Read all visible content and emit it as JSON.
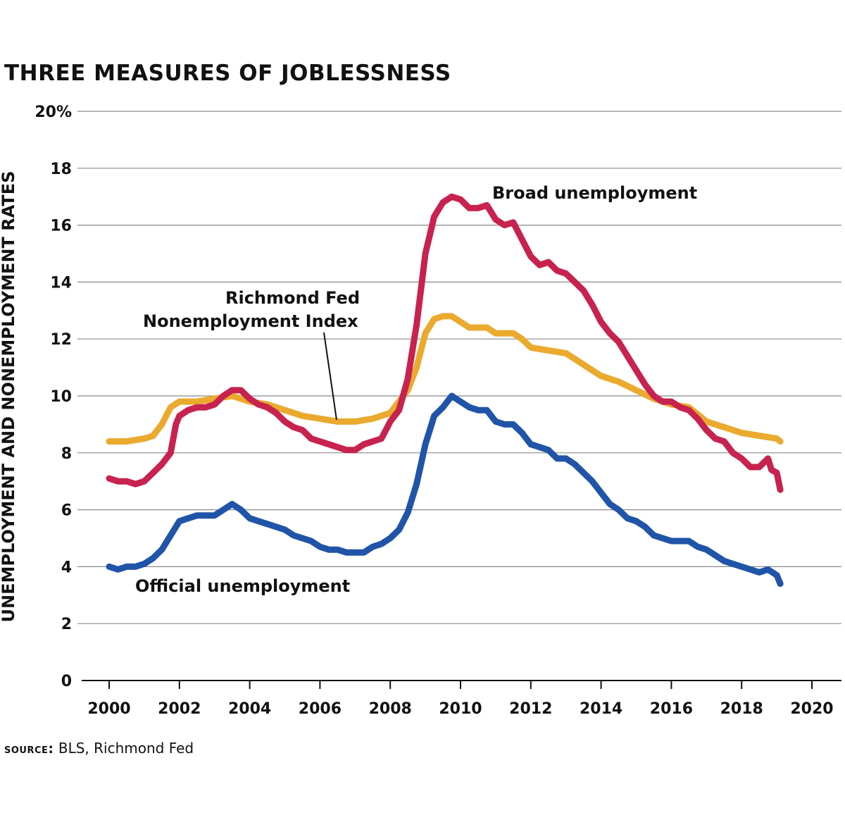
{
  "chart_data": {
    "type": "line",
    "title": "THREE MEASURES OF JOBLESSNESS",
    "xlabel": "",
    "ylabel": "UNEMPLOYMENT AND NONEMPLOYMENT RATES",
    "xlim": [
      2000,
      2020
    ],
    "ylim": [
      0,
      20
    ],
    "x_ticks": [
      "2000",
      "2002",
      "2004",
      "2006",
      "2008",
      "2010",
      "2012",
      "2014",
      "2016",
      "2018",
      "2020"
    ],
    "y_ticks": [
      "0",
      "2",
      "4",
      "6",
      "8",
      "10",
      "12",
      "14",
      "16",
      "18",
      "20%"
    ],
    "grid": "horizontal",
    "annotations": [
      {
        "label": "Broad unemployment",
        "series": "broad"
      },
      {
        "label": "Richmond Fed",
        "series": "nonemployment"
      },
      {
        "label": "Nonemployment Index",
        "series": "nonemployment"
      },
      {
        "label": "Official unemployment",
        "series": "official"
      }
    ],
    "series": [
      {
        "key": "broad",
        "color": "#c8224f",
        "points": [
          [
            2000.0,
            7.1
          ],
          [
            2000.25,
            7.0
          ],
          [
            2000.5,
            7.0
          ],
          [
            2000.75,
            6.9
          ],
          [
            2001.0,
            7.0
          ],
          [
            2001.25,
            7.3
          ],
          [
            2001.5,
            7.6
          ],
          [
            2001.75,
            8.0
          ],
          [
            2001.9,
            9.0
          ],
          [
            2002.0,
            9.3
          ],
          [
            2002.25,
            9.5
          ],
          [
            2002.5,
            9.6
          ],
          [
            2002.75,
            9.6
          ],
          [
            2003.0,
            9.7
          ],
          [
            2003.25,
            10.0
          ],
          [
            2003.5,
            10.2
          ],
          [
            2003.75,
            10.2
          ],
          [
            2004.0,
            9.9
          ],
          [
            2004.25,
            9.7
          ],
          [
            2004.5,
            9.6
          ],
          [
            2004.75,
            9.4
          ],
          [
            2005.0,
            9.1
          ],
          [
            2005.25,
            8.9
          ],
          [
            2005.5,
            8.8
          ],
          [
            2005.75,
            8.5
          ],
          [
            2006.0,
            8.4
          ],
          [
            2006.25,
            8.3
          ],
          [
            2006.5,
            8.2
          ],
          [
            2006.75,
            8.1
          ],
          [
            2007.0,
            8.1
          ],
          [
            2007.25,
            8.3
          ],
          [
            2007.5,
            8.4
          ],
          [
            2007.75,
            8.5
          ],
          [
            2008.0,
            9.1
          ],
          [
            2008.25,
            9.5
          ],
          [
            2008.5,
            10.6
          ],
          [
            2008.75,
            12.5
          ],
          [
            2009.0,
            15.0
          ],
          [
            2009.25,
            16.3
          ],
          [
            2009.5,
            16.8
          ],
          [
            2009.75,
            17.0
          ],
          [
            2010.0,
            16.9
          ],
          [
            2010.25,
            16.6
          ],
          [
            2010.5,
            16.6
          ],
          [
            2010.75,
            16.7
          ],
          [
            2011.0,
            16.2
          ],
          [
            2011.25,
            16.0
          ],
          [
            2011.5,
            16.1
          ],
          [
            2011.75,
            15.5
          ],
          [
            2012.0,
            14.9
          ],
          [
            2012.25,
            14.6
          ],
          [
            2012.5,
            14.7
          ],
          [
            2012.75,
            14.4
          ],
          [
            2013.0,
            14.3
          ],
          [
            2013.25,
            14.0
          ],
          [
            2013.5,
            13.7
          ],
          [
            2013.75,
            13.2
          ],
          [
            2014.0,
            12.6
          ],
          [
            2014.25,
            12.2
          ],
          [
            2014.5,
            11.9
          ],
          [
            2014.75,
            11.4
          ],
          [
            2015.0,
            10.9
          ],
          [
            2015.25,
            10.4
          ],
          [
            2015.5,
            10.0
          ],
          [
            2015.75,
            9.8
          ],
          [
            2016.0,
            9.8
          ],
          [
            2016.25,
            9.6
          ],
          [
            2016.5,
            9.5
          ],
          [
            2016.75,
            9.2
          ],
          [
            2017.0,
            8.8
          ],
          [
            2017.25,
            8.5
          ],
          [
            2017.5,
            8.4
          ],
          [
            2017.75,
            8.0
          ],
          [
            2018.0,
            7.8
          ],
          [
            2018.25,
            7.5
          ],
          [
            2018.5,
            7.5
          ],
          [
            2018.75,
            7.8
          ],
          [
            2018.85,
            7.4
          ],
          [
            2019.0,
            7.3
          ],
          [
            2019.1,
            6.7
          ]
        ]
      },
      {
        "key": "nonemployment",
        "color": "#eaaa2e",
        "points": [
          [
            2000.0,
            8.4
          ],
          [
            2000.5,
            8.4
          ],
          [
            2001.0,
            8.5
          ],
          [
            2001.25,
            8.6
          ],
          [
            2001.5,
            9.0
          ],
          [
            2001.75,
            9.6
          ],
          [
            2002.0,
            9.8
          ],
          [
            2002.5,
            9.8
          ],
          [
            2003.0,
            9.9
          ],
          [
            2003.5,
            10.0
          ],
          [
            2004.0,
            9.8
          ],
          [
            2004.5,
            9.7
          ],
          [
            2005.0,
            9.5
          ],
          [
            2005.5,
            9.3
          ],
          [
            2006.0,
            9.2
          ],
          [
            2006.5,
            9.1
          ],
          [
            2007.0,
            9.1
          ],
          [
            2007.5,
            9.2
          ],
          [
            2008.0,
            9.4
          ],
          [
            2008.5,
            10.2
          ],
          [
            2008.75,
            11.0
          ],
          [
            2009.0,
            12.2
          ],
          [
            2009.25,
            12.7
          ],
          [
            2009.5,
            12.8
          ],
          [
            2009.75,
            12.8
          ],
          [
            2010.0,
            12.6
          ],
          [
            2010.25,
            12.4
          ],
          [
            2010.5,
            12.4
          ],
          [
            2010.75,
            12.4
          ],
          [
            2011.0,
            12.2
          ],
          [
            2011.5,
            12.2
          ],
          [
            2011.75,
            12.0
          ],
          [
            2012.0,
            11.7
          ],
          [
            2012.5,
            11.6
          ],
          [
            2013.0,
            11.5
          ],
          [
            2013.5,
            11.1
          ],
          [
            2014.0,
            10.7
          ],
          [
            2014.5,
            10.5
          ],
          [
            2015.0,
            10.2
          ],
          [
            2015.5,
            9.9
          ],
          [
            2016.0,
            9.7
          ],
          [
            2016.5,
            9.6
          ],
          [
            2017.0,
            9.1
          ],
          [
            2017.5,
            8.9
          ],
          [
            2018.0,
            8.7
          ],
          [
            2018.5,
            8.6
          ],
          [
            2019.0,
            8.5
          ],
          [
            2019.1,
            8.4
          ]
        ]
      },
      {
        "key": "official",
        "color": "#2054a8",
        "points": [
          [
            2000.0,
            4.0
          ],
          [
            2000.25,
            3.9
          ],
          [
            2000.5,
            4.0
          ],
          [
            2000.75,
            4.0
          ],
          [
            2001.0,
            4.1
          ],
          [
            2001.25,
            4.3
          ],
          [
            2001.5,
            4.6
          ],
          [
            2001.75,
            5.1
          ],
          [
            2002.0,
            5.6
          ],
          [
            2002.25,
            5.7
          ],
          [
            2002.5,
            5.8
          ],
          [
            2002.75,
            5.8
          ],
          [
            2003.0,
            5.8
          ],
          [
            2003.25,
            6.0
          ],
          [
            2003.5,
            6.2
          ],
          [
            2003.75,
            6.0
          ],
          [
            2004.0,
            5.7
          ],
          [
            2004.25,
            5.6
          ],
          [
            2004.5,
            5.5
          ],
          [
            2004.75,
            5.4
          ],
          [
            2005.0,
            5.3
          ],
          [
            2005.25,
            5.1
          ],
          [
            2005.5,
            5.0
          ],
          [
            2005.75,
            4.9
          ],
          [
            2006.0,
            4.7
          ],
          [
            2006.25,
            4.6
          ],
          [
            2006.5,
            4.6
          ],
          [
            2006.75,
            4.5
          ],
          [
            2007.0,
            4.5
          ],
          [
            2007.25,
            4.5
          ],
          [
            2007.5,
            4.7
          ],
          [
            2007.75,
            4.8
          ],
          [
            2008.0,
            5.0
          ],
          [
            2008.25,
            5.3
          ],
          [
            2008.5,
            5.9
          ],
          [
            2008.75,
            6.9
          ],
          [
            2009.0,
            8.3
          ],
          [
            2009.25,
            9.3
          ],
          [
            2009.5,
            9.6
          ],
          [
            2009.75,
            10.0
          ],
          [
            2010.0,
            9.8
          ],
          [
            2010.25,
            9.6
          ],
          [
            2010.5,
            9.5
          ],
          [
            2010.75,
            9.5
          ],
          [
            2011.0,
            9.1
          ],
          [
            2011.25,
            9.0
          ],
          [
            2011.5,
            9.0
          ],
          [
            2011.75,
            8.7
          ],
          [
            2012.0,
            8.3
          ],
          [
            2012.25,
            8.2
          ],
          [
            2012.5,
            8.1
          ],
          [
            2012.75,
            7.8
          ],
          [
            2013.0,
            7.8
          ],
          [
            2013.25,
            7.6
          ],
          [
            2013.5,
            7.3
          ],
          [
            2013.75,
            7.0
          ],
          [
            2014.0,
            6.6
          ],
          [
            2014.25,
            6.2
          ],
          [
            2014.5,
            6.0
          ],
          [
            2014.75,
            5.7
          ],
          [
            2015.0,
            5.6
          ],
          [
            2015.25,
            5.4
          ],
          [
            2015.5,
            5.1
          ],
          [
            2015.75,
            5.0
          ],
          [
            2016.0,
            4.9
          ],
          [
            2016.25,
            4.9
          ],
          [
            2016.5,
            4.9
          ],
          [
            2016.75,
            4.7
          ],
          [
            2017.0,
            4.6
          ],
          [
            2017.25,
            4.4
          ],
          [
            2017.5,
            4.2
          ],
          [
            2017.75,
            4.1
          ],
          [
            2018.0,
            4.0
          ],
          [
            2018.25,
            3.9
          ],
          [
            2018.5,
            3.8
          ],
          [
            2018.75,
            3.9
          ],
          [
            2019.0,
            3.7
          ],
          [
            2019.1,
            3.4
          ]
        ]
      }
    ]
  },
  "source": {
    "label": "SOURCE:",
    "text": "BLS, Richmond Fed"
  }
}
